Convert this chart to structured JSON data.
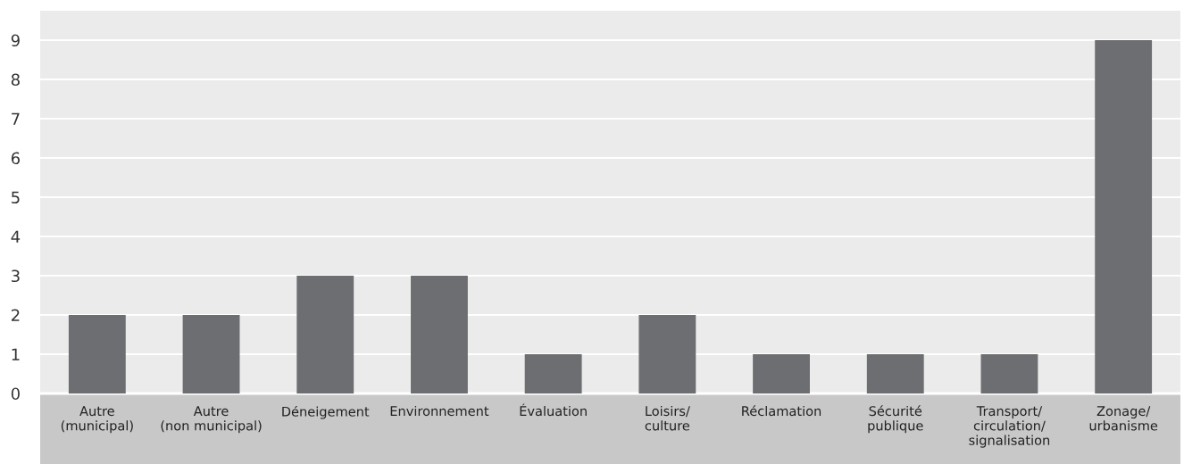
{
  "chart_data": {
    "type": "bar",
    "categories": [
      "Autre\n(municipal)",
      "Autre\n(non municipal)",
      "Déneigement",
      "Environnement",
      "Évaluation",
      "Loisirs/\nculture",
      "Réclamation",
      "Sécurité\npublique",
      "Transport/\ncirculation/\nsignalisation",
      "Zonage/\nurbanisme"
    ],
    "values": [
      2,
      2,
      3,
      3,
      1,
      2,
      1,
      1,
      1,
      9
    ],
    "color": "#6d6e71",
    "ylim": [
      0,
      9.75
    ],
    "yticks": [
      0,
      1,
      2,
      3,
      4,
      5,
      6,
      7,
      8,
      9
    ],
    "grid": "y",
    "legend": false
  }
}
